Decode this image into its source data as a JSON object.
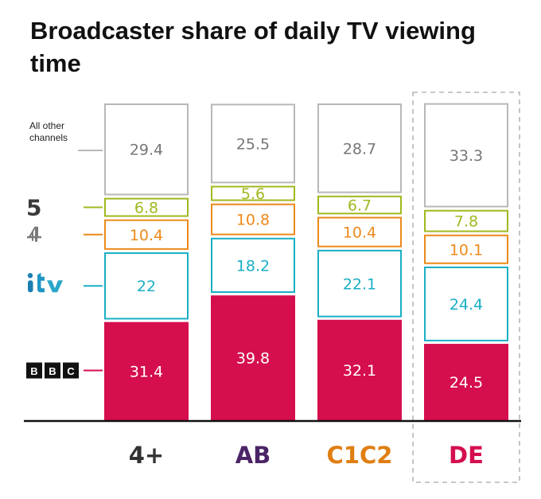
{
  "title": "Broadcaster share of daily TV viewing time",
  "colors": {
    "bbc": "#d50e4e",
    "itv": "#1aafc5",
    "channel4": "#ec8a1b",
    "channel5": "#a2b81f",
    "other": "#b8b8b8",
    "axis": "#111111",
    "highlight_box": "#a8a8a8"
  },
  "chart_data": {
    "type": "bar",
    "stacked": true,
    "title": "Broadcaster share of daily TV viewing time",
    "categories": [
      "4+",
      "AB",
      "C1C2",
      "DE"
    ],
    "category_colors": [
      "#333333",
      "#4b2466",
      "#e07e12",
      "#d50e4e"
    ],
    "highlighted_category": "DE",
    "series": [
      {
        "key": "bbc",
        "values": [
          31.4,
          39.8,
          32.1,
          24.5
        ],
        "color": "#d50e4e",
        "filled": true,
        "icon": "bbc-logo-icon"
      },
      {
        "key": "itv",
        "values": [
          22,
          18.2,
          22.1,
          24.4
        ],
        "color": "#1aafc5",
        "filled": false,
        "icon": "itv-logo-icon"
      },
      {
        "key": "channel4",
        "values": [
          10.4,
          10.8,
          10.4,
          10.1
        ],
        "color": "#ec8a1b",
        "filled": false,
        "icon": "channel4-logo-icon"
      },
      {
        "key": "channel5",
        "values": [
          6.8,
          5.6,
          6.7,
          7.8
        ],
        "color": "#a2b81f",
        "filled": false,
        "icon": "channel5-logo-icon"
      },
      {
        "key": "other",
        "values": [
          29.4,
          25.5,
          28.7,
          33.3
        ],
        "color": "#b8b8b8",
        "filled": false,
        "label_color": "#777777",
        "icon": ""
      }
    ],
    "legend": {
      "position": "left",
      "other_label": [
        "All other",
        "channels"
      ],
      "logo_text": {
        "bbc": [
          "B",
          "B",
          "C"
        ],
        "channel5": "5"
      }
    },
    "xlabel": "",
    "ylabel": "",
    "ylim": [
      0,
      100
    ],
    "grid": false
  }
}
